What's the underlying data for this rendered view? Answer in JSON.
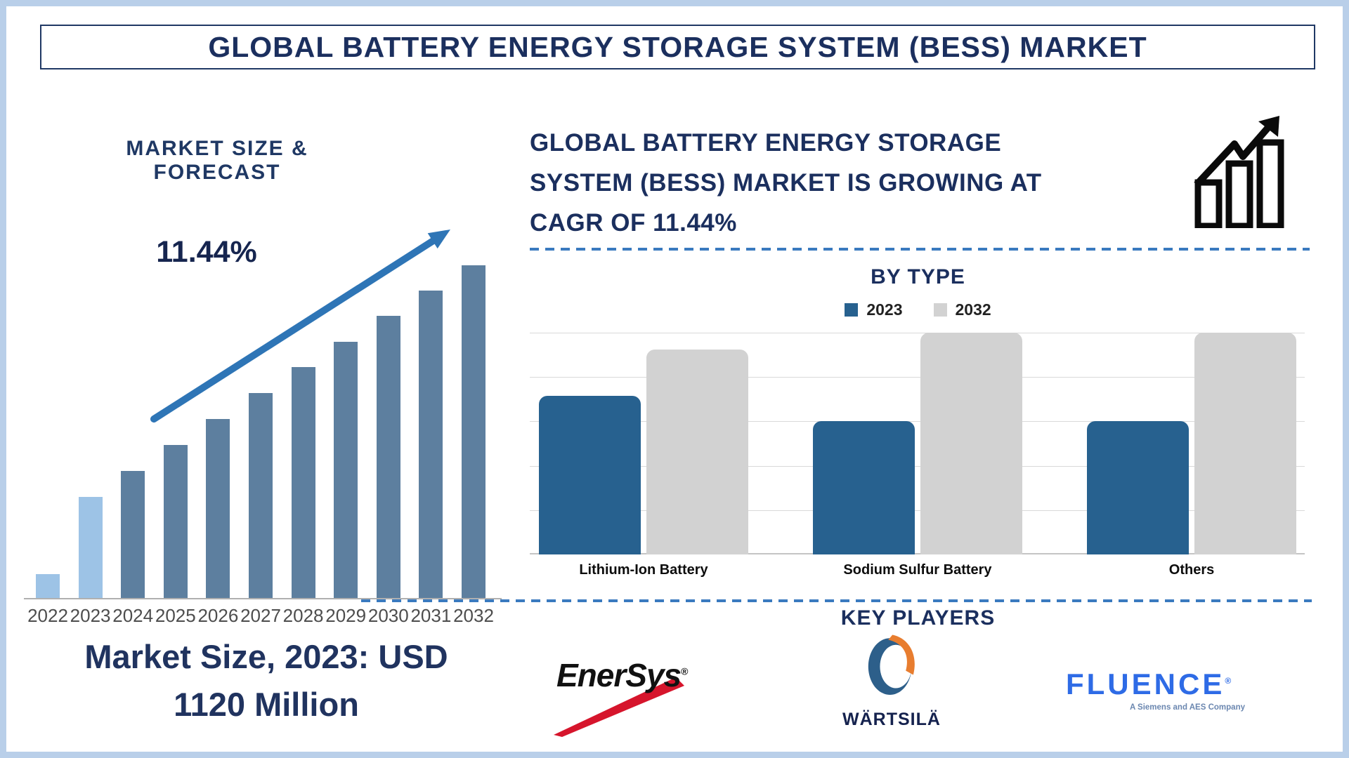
{
  "page_title": "GLOBAL BATTERY ENERGY STORAGE SYSTEM (BESS) MARKET",
  "left": {
    "section_title": "MARKET SIZE & FORECAST",
    "cagr_label": "11.44%",
    "market_size_line1": "Market Size, 2023: USD",
    "market_size_line2": "1120 Million"
  },
  "right": {
    "headline_lines": [
      "GLOBAL BATTERY ENERGY STORAGE",
      "SYSTEM (BESS) MARKET IS GROWING AT",
      "CAGR OF 11.44%"
    ],
    "by_type": {
      "title": "BY TYPE",
      "legend": [
        {
          "label": "2023",
          "color": "#27618f"
        },
        {
          "label": "2032",
          "color": "#d2d2d2"
        }
      ]
    },
    "key_players": {
      "title": "KEY PLAYERS",
      "players": [
        {
          "name": "EnerSys",
          "reg": "®"
        },
        {
          "name": "WÄRTSILÄ"
        },
        {
          "name": "FLUENCE",
          "reg": "®",
          "tagline": "A Siemens and AES Company"
        }
      ]
    }
  },
  "icons": {
    "growth_chart": "bar-chart-with-rising-arrow-icon",
    "trend_arrow": "rising-trend-arrow"
  },
  "colors": {
    "page_border": "#b9cfe9",
    "navy_text": "#1b2f5e",
    "title_border": "#1f3864",
    "bar_light": "#9dc3e6",
    "bar_dark": "#5d7f9f",
    "arrow_blue": "#2e75b6",
    "bytype_2023_blue": "#27618f",
    "bytype_2032_gray": "#d2d2d2",
    "gridline_gray": "#d9d9d9",
    "axis_gray": "#b0b0b0",
    "year_label_gray": "#4d4d4d",
    "dashed_divider_blue": "#3a7abf",
    "enersys_black": "#111111",
    "enersys_red": "#d6152c",
    "wartsila_navy": "#15224e",
    "wartsila_blue": "#2d5f8a",
    "wartsila_orange": "#e87d2f",
    "fluence_blue": "#2e6be6",
    "fluence_tagline": "#6b87b0",
    "icon_black": "#0a0a0a"
  },
  "chart_data": [
    {
      "type": "bar",
      "title": "MARKET SIZE & FORECAST",
      "xlabel": "",
      "ylabel": "",
      "y_axis_shown": false,
      "grid": false,
      "categories": [
        "2022",
        "2023",
        "2024",
        "2025",
        "2026",
        "2027",
        "2028",
        "2029",
        "2030",
        "2031",
        "2032"
      ],
      "values_relative_pct_of_max": [
        7.2,
        30.4,
        38.2,
        46.0,
        53.8,
        61.6,
        69.4,
        77.0,
        84.8,
        92.4,
        100
      ],
      "highlight_years_light_blue": [
        "2022",
        "2023"
      ],
      "annotations": [
        "11.44%",
        "Market Size, 2023: USD 1120 Million"
      ],
      "note": "stylized infographic bars, no value axis shown; 2023 market size = USD 1120 Million, CAGR 11.44% to 2032"
    },
    {
      "type": "bar",
      "title": "BY TYPE",
      "xlabel": "",
      "ylabel": "",
      "y_axis_shown": false,
      "grid": true,
      "gridline_count": 6,
      "legend_position": "top-center",
      "ylim": [
        0,
        100
      ],
      "categories": [
        "Lithium-Ion Battery",
        "Sodium Sulfur Battery",
        "Others"
      ],
      "series": [
        {
          "name": "2023",
          "color": "#27618f",
          "values": [
            71.5,
            60,
            60
          ]
        },
        {
          "name": "2032",
          "color": "#d2d2d2",
          "values": [
            92.5,
            100,
            100
          ]
        }
      ],
      "note": "relative heights; no value axis labels shown"
    }
  ]
}
